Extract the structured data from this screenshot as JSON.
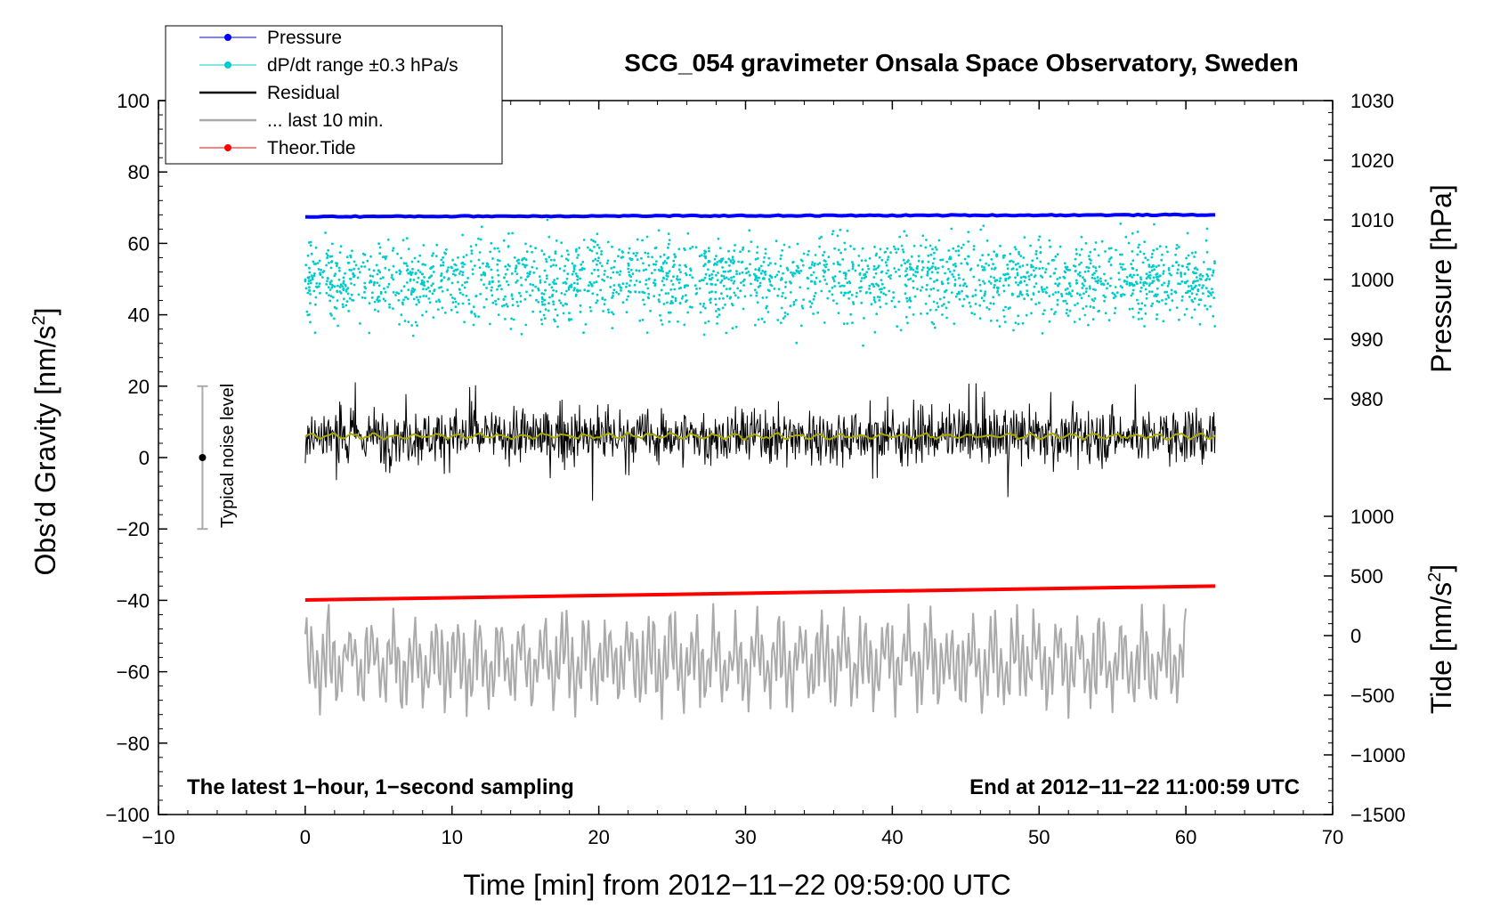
{
  "chart_data": {
    "type": "scatter",
    "title": "SCG_054 gravimeter Onsala Space Observatory, Sweden",
    "xlabel": "Time [min] from 2012−11−22 09:59:00 UTC",
    "ylabel_left": "Obs’d Gravity [nm/s",
    "ylabel_left_sup": "2",
    "ylabel_left_end": "]",
    "ylabel_right_pressure": "Pressure [hPa]",
    "ylabel_right_tide": "Tide [nm/s",
    "ylabel_right_tide_sup": "2",
    "ylabel_right_tide_end": "]",
    "xlim": [
      -10,
      70
    ],
    "ylim_left": [
      -100,
      100
    ],
    "x_ticks": [
      "−10",
      "0",
      "10",
      "20",
      "30",
      "40",
      "50",
      "60",
      "70"
    ],
    "y_left_ticks": [
      "100",
      "80",
      "60",
      "40",
      "20",
      "0",
      "−20",
      "−40",
      "−60",
      "−80",
      "−100"
    ],
    "pressure_ticks": [
      "1030",
      "1020",
      "1010",
      "1000",
      "990",
      "980"
    ],
    "tide_ticks": [
      "1000",
      "500",
      "0",
      "−500",
      "−1000",
      "−1500"
    ],
    "annotation_left": "The latest 1−hour, 1−second sampling",
    "annotation_right": "End at 2012−11−22 11:00:59 UTC",
    "noise_label": "Typical noise level",
    "noise_range": [
      -20,
      20
    ],
    "legend": [
      {
        "label": "Pressure",
        "color": "#0000ff"
      },
      {
        "label": "dP/dt range ±0.3 hPa/s",
        "color": "#00cccc"
      },
      {
        "label": "Residual",
        "color": "#000000"
      },
      {
        "label": "... last 10 min.",
        "color": "#aaaaaa"
      },
      {
        "label": "Theor.Tide",
        "color": "#ff0000"
      }
    ],
    "series": [
      {
        "name": "Pressure",
        "x_range": [
          0,
          62
        ],
        "gravity_equiv": [
          67.5,
          68.0
        ],
        "hPa": 1010.6,
        "color": "#0000ff"
      },
      {
        "name": "dP/dt range ±0.3 hPa/s",
        "x_range": [
          0,
          62
        ],
        "center": 50,
        "spread": 15,
        "color": "#00cccc"
      },
      {
        "name": "Residual",
        "x_range": [
          0,
          62
        ],
        "mean": 6,
        "amplitude": 10,
        "color": "#000000"
      },
      {
        "name": "Residual smooth",
        "x_range": [
          0,
          62
        ],
        "mean": 6,
        "color": "#aaaa00"
      },
      {
        "name": "Theor.Tide",
        "x_range": [
          0,
          62
        ],
        "gravity_equiv": [
          -39.9,
          -36.0
        ],
        "color": "#ff0000"
      },
      {
        "name": "... last 10 min.",
        "x_range": [
          0,
          60
        ],
        "mean": -57,
        "amplitude": 15,
        "color": "#aaaaaa"
      }
    ]
  }
}
